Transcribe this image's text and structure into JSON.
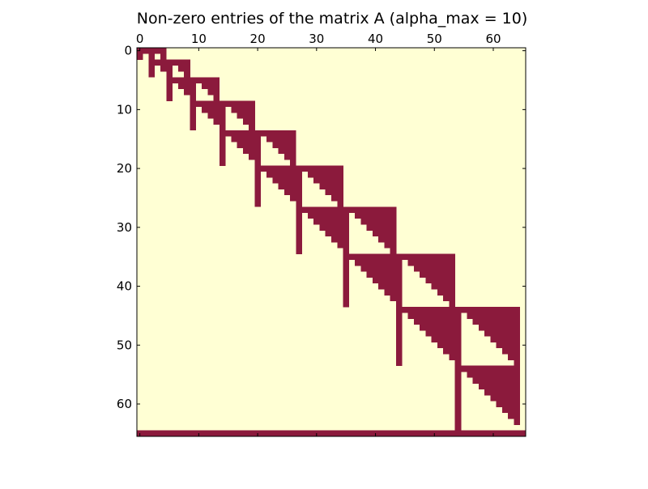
{
  "chart_data": {
    "type": "heatmap",
    "subtype": "sparsity-pattern",
    "title": "Non-zero entries of the matrix A (alpha_max = 10)",
    "xlabel": "",
    "ylabel": "",
    "n": 66,
    "xlim": [
      0,
      66
    ],
    "ylim": [
      66,
      0
    ],
    "x_ticks": [
      0,
      10,
      20,
      30,
      40,
      50,
      60
    ],
    "y_ticks": [
      0,
      10,
      20,
      30,
      40,
      50,
      60
    ],
    "x_axis_position": "top",
    "grid": false,
    "legend": "none",
    "colors": {
      "zero": "#ffffd4",
      "nonzero": "#8b1a3c",
      "axis": "#000000",
      "background": "#ffffff"
    },
    "blocks": [
      {
        "alpha": 0,
        "start": 0,
        "size": 2
      },
      {
        "alpha": 1,
        "start": 2,
        "size": 3
      },
      {
        "alpha": 2,
        "start": 5,
        "size": 4
      },
      {
        "alpha": 3,
        "start": 9,
        "size": 5
      },
      {
        "alpha": 4,
        "start": 14,
        "size": 6
      },
      {
        "alpha": 5,
        "start": 20,
        "size": 7
      },
      {
        "alpha": 6,
        "start": 27,
        "size": 8
      },
      {
        "alpha": 7,
        "start": 35,
        "size": 9
      },
      {
        "alpha": 8,
        "start": 44,
        "size": 10
      },
      {
        "alpha": 9,
        "start": 54,
        "size": 11
      }
    ],
    "last_row_full": true
  }
}
